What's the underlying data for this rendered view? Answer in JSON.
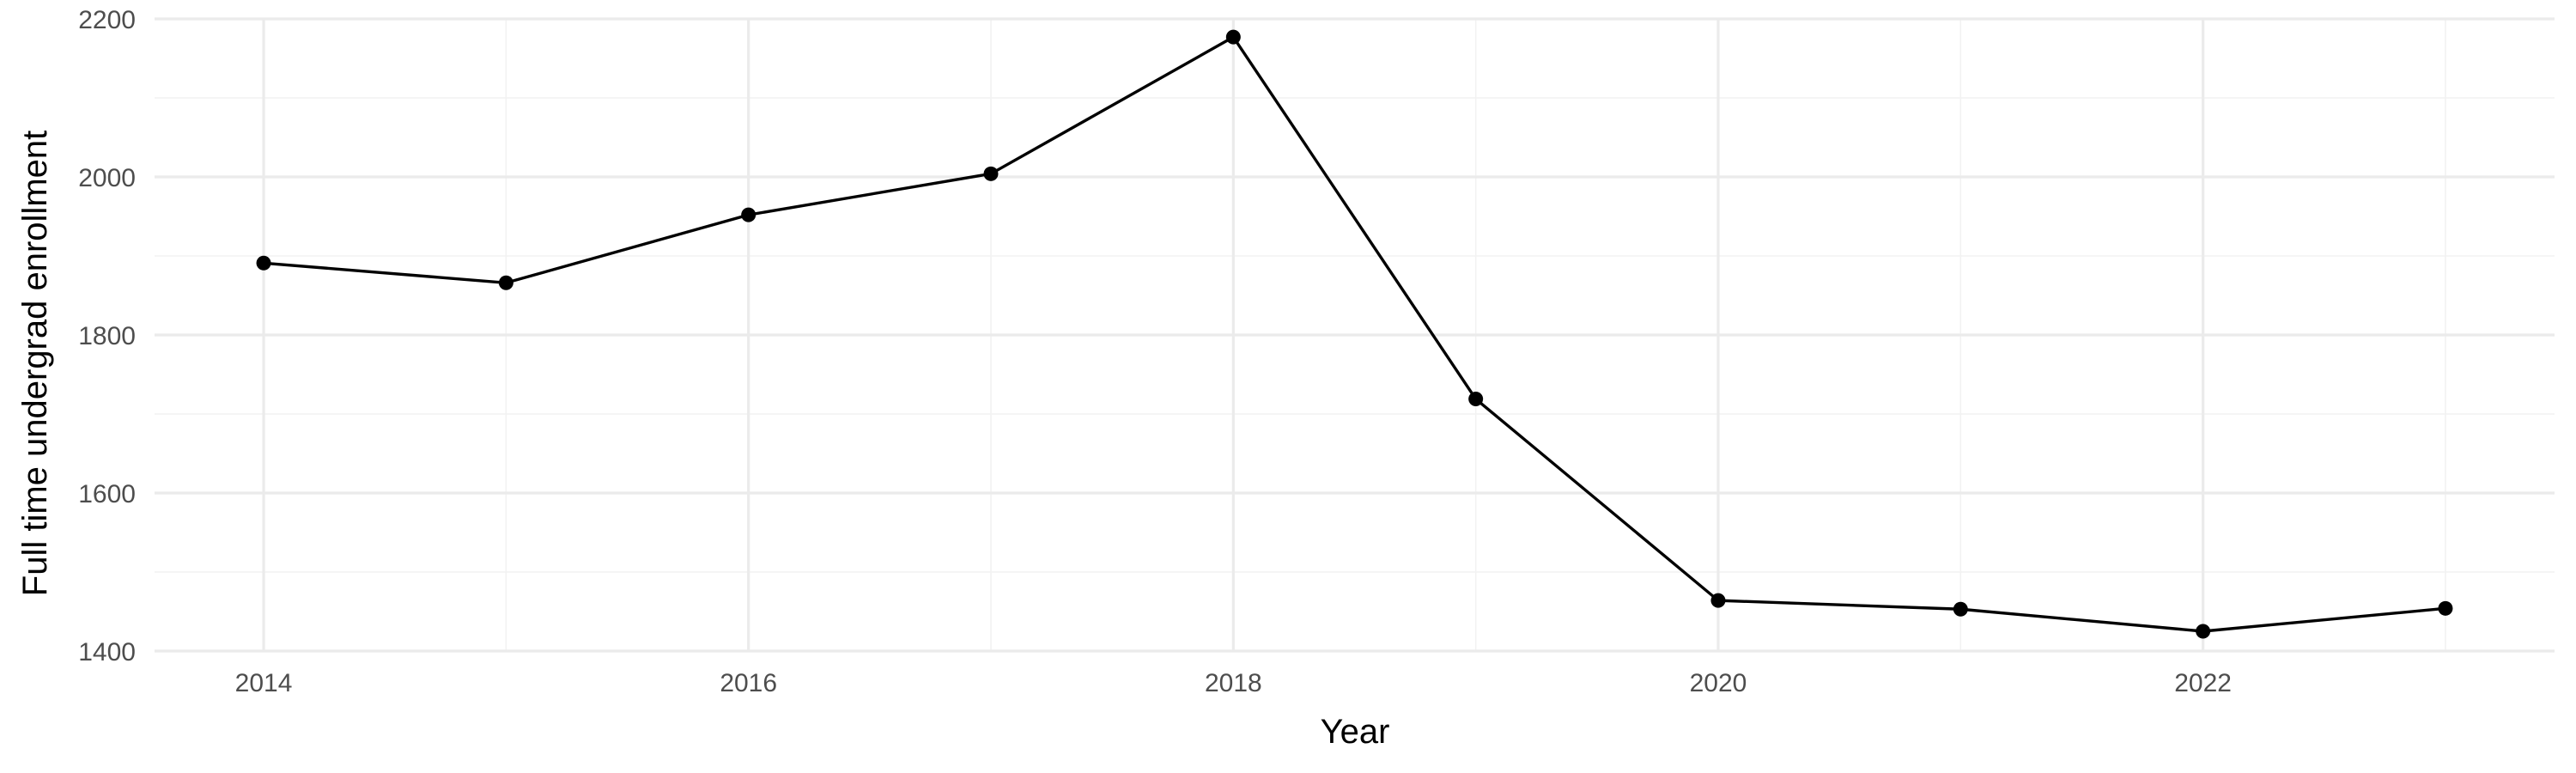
{
  "chart_data": {
    "type": "line",
    "title": "",
    "xlabel": "Year",
    "ylabel": "Full time undergrad enrollment",
    "x": [
      2014,
      2015,
      2016,
      2017,
      2018,
      2019,
      2020,
      2021,
      2022,
      2023
    ],
    "series": [
      {
        "values": [
          1891,
          1866,
          1952,
          2004,
          2177,
          1719,
          1464,
          1453,
          1425,
          1454
        ]
      }
    ],
    "xlim": [
      2013.55,
      2023.45
    ],
    "ylim": [
      1400,
      2200
    ],
    "x_ticks": [
      2014,
      2016,
      2018,
      2020,
      2022
    ],
    "x_tick_labels": [
      "2014",
      "2016",
      "2018",
      "2020",
      "2022"
    ],
    "x_minor_ticks": [
      2015,
      2017,
      2019,
      2021,
      2023
    ],
    "y_ticks": [
      1400,
      1600,
      1800,
      2000,
      2200
    ],
    "y_tick_labels": [
      "1400",
      "1600",
      "1800",
      "2000",
      "2200"
    ],
    "y_minor_ticks": [
      1500,
      1700,
      1900,
      2100
    ],
    "grid": true,
    "legend": "none",
    "colors": {
      "line": "#000000",
      "grid_major": "#ebebeb",
      "grid_minor": "#f2f2f2",
      "tick_text": "#4d4d4d",
      "axis_title": "#000000",
      "background": "#ffffff"
    }
  }
}
